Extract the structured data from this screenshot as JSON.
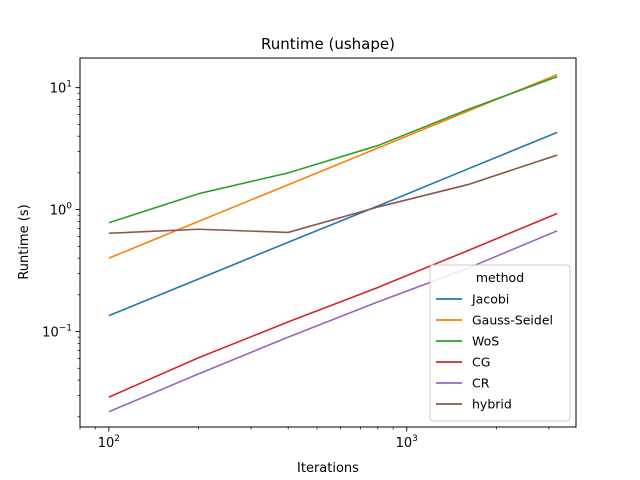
{
  "chart_data": {
    "type": "line",
    "title": "Runtime (ushape)",
    "xlabel": "Iterations",
    "ylabel": "Runtime (s)",
    "xscale": "log",
    "yscale": "log",
    "xlim": [
      80,
      3700
    ],
    "ylim": [
      0.0165,
      17.5
    ],
    "grid": false,
    "legend": {
      "title": "method",
      "position": "lower right"
    },
    "x_ticks": [
      {
        "value": 100,
        "base": "10",
        "exp": "2"
      },
      {
        "value": 1000,
        "base": "10",
        "exp": "3"
      }
    ],
    "y_ticks": [
      {
        "value": 0.1,
        "base": "10",
        "exp": "−1"
      },
      {
        "value": 1,
        "base": "10",
        "exp": "0"
      },
      {
        "value": 10,
        "base": "10",
        "exp": "1"
      }
    ],
    "x": [
      100,
      200,
      400,
      800,
      1600,
      3200
    ],
    "series": [
      {
        "name": "Jacobi",
        "color": "#1f77b4",
        "values": [
          0.135,
          0.27,
          0.54,
          1.07,
          2.15,
          4.3
        ]
      },
      {
        "name": "Gauss-Seidel",
        "color": "#ff7f0e",
        "values": [
          0.4,
          0.8,
          1.6,
          3.2,
          6.4,
          12.8
        ]
      },
      {
        "name": "WoS",
        "color": "#2ca02c",
        "values": [
          0.78,
          1.35,
          2.0,
          3.35,
          6.6,
          12.3
        ]
      },
      {
        "name": "CG",
        "color": "#d62728",
        "values": [
          0.029,
          0.061,
          0.12,
          0.23,
          0.46,
          0.93
        ]
      },
      {
        "name": "CR",
        "color": "#9467bd",
        "values": [
          0.022,
          0.045,
          0.09,
          0.175,
          0.33,
          0.67
        ]
      },
      {
        "name": "hybrid",
        "color": "#8c564b",
        "values": [
          0.64,
          0.69,
          0.65,
          1.05,
          1.6,
          2.8
        ]
      }
    ]
  }
}
